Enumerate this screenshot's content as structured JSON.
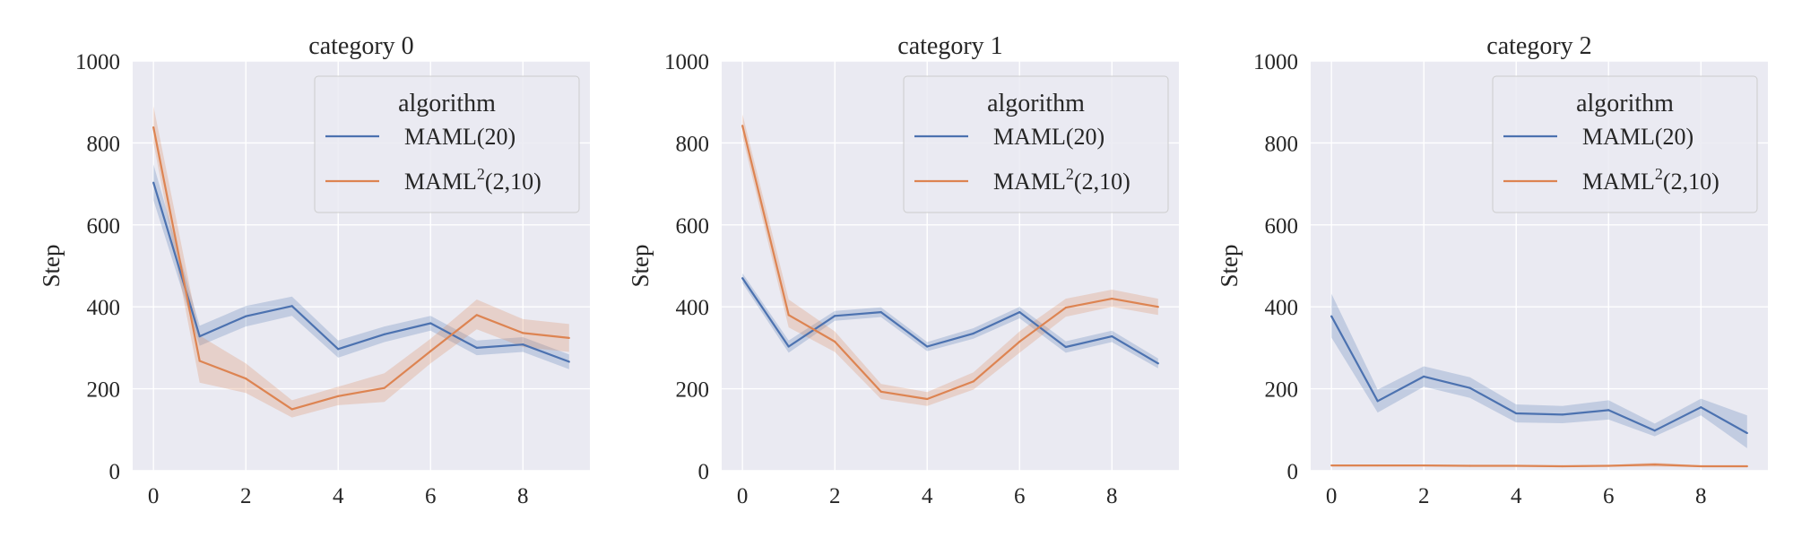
{
  "colors": {
    "background": "#eaeaf2",
    "grid": "#ffffff",
    "text": "#262626",
    "series": [
      "#4c72b0",
      "#dd8452"
    ]
  },
  "chart_data": [
    {
      "type": "line",
      "title": "category 0",
      "xlabel": "",
      "ylabel": "Step",
      "xlim": [
        -0.45,
        9.45
      ],
      "ylim": [
        0,
        1000
      ],
      "xticks": [
        "0",
        "2",
        "4",
        "6",
        "8"
      ],
      "yticks": [
        "0",
        "200",
        "400",
        "600",
        "800",
        "1000"
      ],
      "grid": true,
      "legend": {
        "title": "algorithm",
        "placement": "upper right",
        "entries": [
          "MAML(20)",
          "MAML",
          "2",
          "(2,10)"
        ]
      },
      "x": [
        0,
        1,
        2,
        3,
        4,
        5,
        6,
        7,
        8,
        9
      ],
      "series": [
        {
          "name": "MAML(20)",
          "values": [
            703,
            328,
            377,
            402,
            297,
            333,
            360,
            300,
            308,
            266
          ],
          "lower": [
            660,
            305,
            352,
            378,
            276,
            314,
            342,
            282,
            290,
            248
          ],
          "upper": [
            748,
            354,
            402,
            425,
            318,
            352,
            378,
            318,
            326,
            284
          ]
        },
        {
          "name": "MAML²(2,10)",
          "values": [
            838,
            268,
            225,
            150,
            182,
            202,
            292,
            380,
            336,
            324
          ],
          "lower": [
            800,
            215,
            190,
            130,
            160,
            168,
            262,
            345,
            302,
            290
          ],
          "upper": [
            890,
            330,
            262,
            172,
            205,
            238,
            322,
            418,
            370,
            358
          ]
        }
      ]
    },
    {
      "type": "line",
      "title": "category 1",
      "xlabel": "",
      "ylabel": "Step",
      "xlim": [
        -0.45,
        9.45
      ],
      "ylim": [
        0,
        1000
      ],
      "xticks": [
        "0",
        "2",
        "4",
        "6",
        "8"
      ],
      "yticks": [
        "0",
        "200",
        "400",
        "600",
        "800",
        "1000"
      ],
      "grid": true,
      "legend": {
        "title": "algorithm",
        "placement": "upper right",
        "entries": [
          "MAML(20)",
          "MAML",
          "2",
          "(2,10)"
        ]
      },
      "x": [
        0,
        1,
        2,
        3,
        4,
        5,
        6,
        7,
        8,
        9
      ],
      "series": [
        {
          "name": "MAML(20)",
          "values": [
            470,
            303,
            378,
            387,
            303,
            335,
            387,
            302,
            328,
            262
          ],
          "lower": [
            458,
            288,
            366,
            375,
            292,
            322,
            372,
            288,
            314,
            250
          ],
          "upper": [
            482,
            318,
            390,
            399,
            314,
            348,
            400,
            316,
            342,
            274
          ]
        },
        {
          "name": "MAML²(2,10)",
          "values": [
            842,
            380,
            315,
            193,
            175,
            218,
            315,
            398,
            420,
            400
          ],
          "lower": [
            815,
            350,
            290,
            175,
            158,
            198,
            288,
            376,
            400,
            380
          ],
          "upper": [
            870,
            418,
            340,
            212,
            192,
            240,
            340,
            420,
            442,
            420
          ]
        }
      ]
    },
    {
      "type": "line",
      "title": "category 2",
      "xlabel": "",
      "ylabel": "Step",
      "xlim": [
        -0.45,
        9.45
      ],
      "ylim": [
        0,
        1000
      ],
      "xticks": [
        "0",
        "2",
        "4",
        "6",
        "8"
      ],
      "yticks": [
        "0",
        "200",
        "400",
        "600",
        "800",
        "1000"
      ],
      "grid": true,
      "legend": {
        "title": "algorithm",
        "placement": "upper right",
        "entries": [
          "MAML(20)",
          "MAML",
          "2",
          "(2,10)"
        ]
      },
      "x": [
        0,
        1,
        2,
        3,
        4,
        5,
        6,
        7,
        8,
        9
      ],
      "series": [
        {
          "name": "MAML(20)",
          "values": [
            377,
            170,
            230,
            202,
            140,
            137,
            148,
            98,
            155,
            92
          ],
          "lower": [
            325,
            142,
            205,
            178,
            118,
            116,
            125,
            84,
            135,
            55
          ],
          "upper": [
            432,
            198,
            255,
            228,
            162,
            158,
            172,
            115,
            176,
            135
          ]
        },
        {
          "name": "MAML²(2,10)",
          "values": [
            13,
            13,
            13,
            12,
            12,
            11,
            12,
            15,
            11,
            11
          ],
          "lower": [
            11,
            11,
            11,
            10,
            10,
            9,
            10,
            10,
            9,
            9
          ],
          "upper": [
            15,
            15,
            15,
            14,
            14,
            13,
            14,
            20,
            13,
            13
          ]
        }
      ]
    }
  ]
}
